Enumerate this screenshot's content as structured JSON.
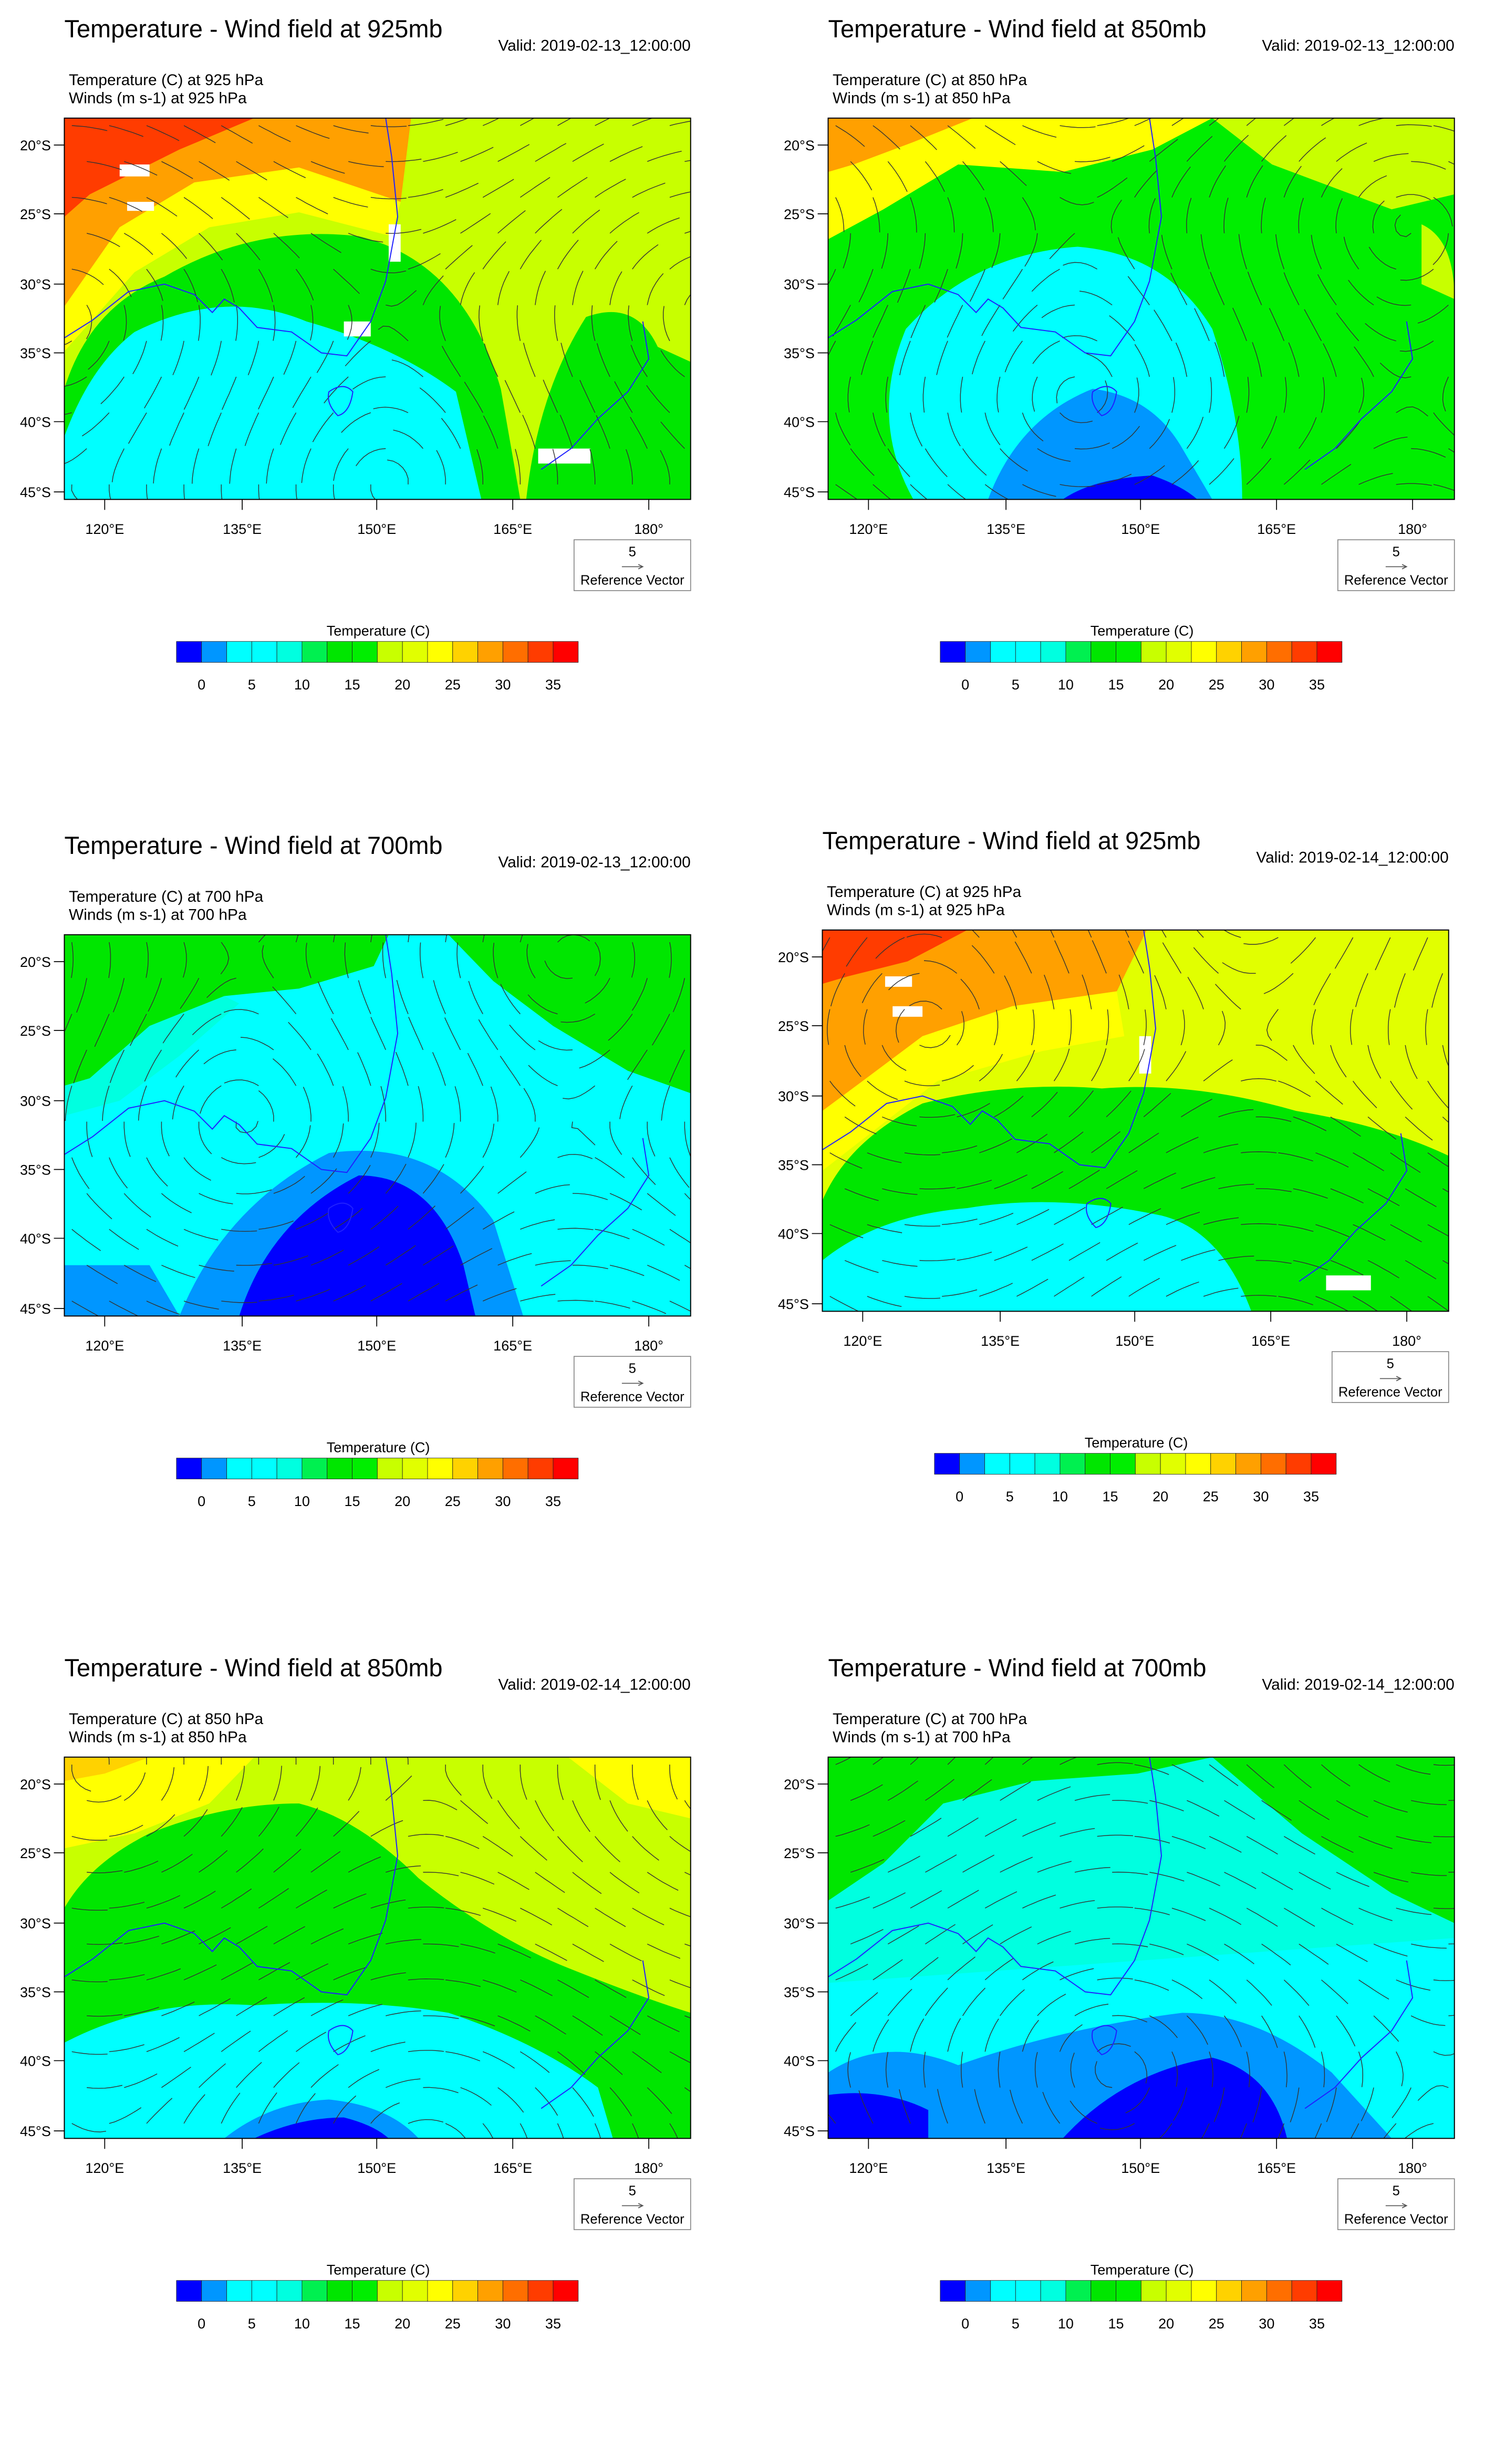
{
  "panels": [
    {
      "title": "Temperature - Wind field at 925mb",
      "valid": "Valid: 2019-02-13_12:00:00",
      "line1": "Temperature   (C)     at   925 hPa",
      "line2": "Winds   (m s-1)     at   925 hPa"
    },
    {
      "title": "Temperature - Wind field at 850mb",
      "valid": "Valid: 2019-02-13_12:00:00",
      "line1": "Temperature   (C)     at   850 hPa",
      "line2": "Winds   (m s-1)     at   850 hPa"
    },
    {
      "title": "Temperature - Wind field at 700mb",
      "valid": "Valid: 2019-02-13_12:00:00",
      "line1": "Temperature   (C)     at   700 hPa",
      "line2": "Winds   (m s-1)     at   700 hPa"
    },
    {
      "title": "Temperature - Wind field at 925mb",
      "valid": "Valid: 2019-02-14_12:00:00",
      "line1": "Temperature   (C)     at   925 hPa",
      "line2": "Winds   (m s-1)     at   925 hPa"
    },
    {
      "title": "Temperature - Wind field at 850mb",
      "valid": "Valid: 2019-02-14_12:00:00",
      "line1": "Temperature   (C)     at   850 hPa",
      "line2": "Winds   (m s-1)     at   850 hPa"
    },
    {
      "title": "Temperature - Wind field at 700mb",
      "valid": "Valid: 2019-02-14_12:00:00",
      "line1": "Temperature   (C)     at   700 hPa",
      "line2": "Winds   (m s-1)     at   700 hPa"
    }
  ],
  "lat_labels": [
    "20°S",
    "25°S",
    "30°S",
    "35°S",
    "40°S",
    "45°S"
  ],
  "lon_labels": [
    "120°E",
    "135°E",
    "150°E",
    "165°E",
    "180°"
  ],
  "reference_vector": {
    "magnitude": "5",
    "label": "Reference Vector"
  },
  "colorbar": {
    "title": "Temperature  (C)",
    "tick_labels": [
      "0",
      "5",
      "10",
      "15",
      "20",
      "25",
      "30",
      "35"
    ],
    "levels": [
      0,
      2.5,
      5,
      7.5,
      10,
      12.5,
      15,
      17.5,
      20,
      22.5,
      25,
      27.5,
      30,
      32.5,
      35
    ],
    "colors": [
      "#0000ff",
      "#0096ff",
      "#00ffff",
      "#00ffff",
      "#00ffe0",
      "#00f050",
      "#00e600",
      "#00ee00",
      "#c8ff00",
      "#e1ff00",
      "#ffff00",
      "#ffd200",
      "#ffa000",
      "#ff6e00",
      "#ff3c00",
      "#ff0000"
    ]
  },
  "coastline_color": "#2020ff"
}
